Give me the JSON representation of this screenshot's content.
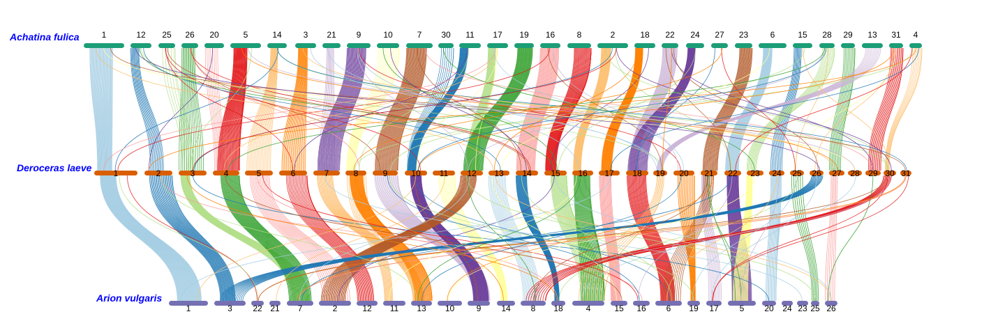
{
  "diagram": {
    "type": "synteny",
    "tracks": [
      {
        "id": "top",
        "species": "Achatina fulica",
        "bar_color": "#1b9e77",
        "chromosomes": [
          "1",
          "12",
          "25",
          "26",
          "20",
          "5",
          "14",
          "3",
          "21",
          "9",
          "10",
          "7",
          "30",
          "11",
          "17",
          "19",
          "16",
          "8",
          "2",
          "18",
          "22",
          "24",
          "27",
          "23",
          "6",
          "15",
          "28",
          "29",
          "13",
          "31",
          "4"
        ]
      },
      {
        "id": "mid",
        "species": "Deroceras laeve",
        "bar_color": "#d95f02",
        "chromosomes": [
          "1",
          "2",
          "3",
          "4",
          "5",
          "6",
          "7",
          "8",
          "9",
          "10",
          "11",
          "12",
          "13",
          "14",
          "15",
          "16",
          "17",
          "18",
          "19",
          "20",
          "21",
          "22",
          "23",
          "24",
          "25",
          "26",
          "27",
          "28",
          "29",
          "30",
          "31"
        ]
      },
      {
        "id": "bot",
        "species": "Arion vulgaris",
        "bar_color": "#7570b3",
        "chromosomes": [
          "1",
          "3",
          "22",
          "21",
          "7",
          "2",
          "12",
          "11",
          "13",
          "10",
          "9",
          "14",
          "8",
          "18",
          "4",
          "15",
          "16",
          "6",
          "19",
          "17",
          "5",
          "20",
          "24",
          "23",
          "25",
          "26"
        ]
      }
    ],
    "palette": [
      "#a6cee3",
      "#1f78b4",
      "#b2df8a",
      "#33a02c",
      "#fb9a99",
      "#e31a1c",
      "#fdbf6f",
      "#ff7f00",
      "#cab2d6",
      "#6a3d9a",
      "#ffff99",
      "#b15928"
    ]
  }
}
